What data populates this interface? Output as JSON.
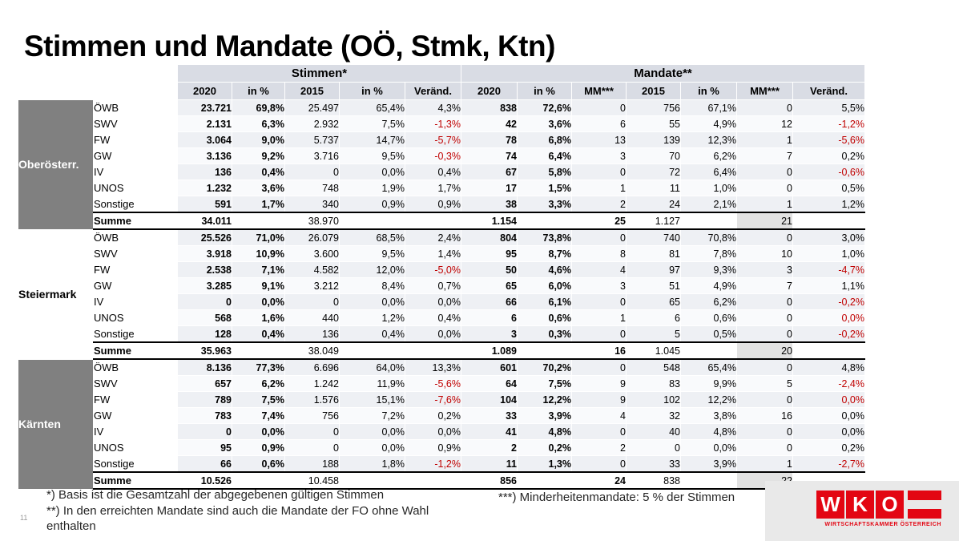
{
  "title": "Stimmen und Mandate (OÖ, Stmk, Ktn)",
  "page_number": "11",
  "table": {
    "group_headers": {
      "stimmen": "Stimmen*",
      "mandate": "Mandate**"
    },
    "columns": [
      "2020",
      "in %",
      "2015",
      "in %",
      "Veränd.",
      "2020",
      "in %",
      "MM***",
      "2015",
      "in %",
      "MM***",
      "Veränd."
    ],
    "regions": [
      {
        "name": "Oberösterr.",
        "shaded": true,
        "rows": [
          {
            "party": "ÖWB",
            "cells": [
              "23.721",
              "69,8%",
              "25.497",
              "65,4%",
              "4,3%",
              "838",
              "72,6%",
              "0",
              "756",
              "67,1%",
              "0",
              "5,5%"
            ],
            "red": []
          },
          {
            "party": "SWV",
            "cells": [
              "2.131",
              "6,3%",
              "2.932",
              "7,5%",
              "-1,3%",
              "42",
              "3,6%",
              "6",
              "55",
              "4,9%",
              "12",
              "-1,2%"
            ],
            "red": [
              4,
              11
            ]
          },
          {
            "party": "FW",
            "cells": [
              "3.064",
              "9,0%",
              "5.737",
              "14,7%",
              "-5,7%",
              "78",
              "6,8%",
              "13",
              "139",
              "12,3%",
              "1",
              "-5,6%"
            ],
            "red": [
              4,
              11
            ]
          },
          {
            "party": "GW",
            "cells": [
              "3.136",
              "9,2%",
              "3.716",
              "9,5%",
              "-0,3%",
              "74",
              "6,4%",
              "3",
              "70",
              "6,2%",
              "7",
              "0,2%"
            ],
            "red": [
              4
            ]
          },
          {
            "party": "IV",
            "cells": [
              "136",
              "0,4%",
              "0",
              "0,0%",
              "0,4%",
              "67",
              "5,8%",
              "0",
              "72",
              "6,4%",
              "0",
              "-0,6%"
            ],
            "red": [
              11
            ]
          },
          {
            "party": "UNOS",
            "cells": [
              "1.232",
              "3,6%",
              "748",
              "1,9%",
              "1,7%",
              "17",
              "1,5%",
              "1",
              "11",
              "1,0%",
              "0",
              "0,5%"
            ],
            "red": []
          },
          {
            "party": "Sonstige",
            "cells": [
              "591",
              "1,7%",
              "340",
              "0,9%",
              "0,9%",
              "38",
              "3,3%",
              "2",
              "24",
              "2,1%",
              "1",
              "1,2%"
            ],
            "red": []
          }
        ],
        "summe": {
          "label": "Summe",
          "cells": [
            "34.011",
            "",
            "38.970",
            "",
            "",
            "1.154",
            "",
            "25",
            "1.127",
            "",
            "21",
            ""
          ]
        }
      },
      {
        "name": "Steiermark",
        "shaded": false,
        "rows": [
          {
            "party": "ÖWB",
            "cells": [
              "25.526",
              "71,0%",
              "26.079",
              "68,5%",
              "2,4%",
              "804",
              "73,8%",
              "0",
              "740",
              "70,8%",
              "0",
              "3,0%"
            ],
            "red": []
          },
          {
            "party": "SWV",
            "cells": [
              "3.918",
              "10,9%",
              "3.600",
              "9,5%",
              "1,4%",
              "95",
              "8,7%",
              "8",
              "81",
              "7,8%",
              "10",
              "1,0%"
            ],
            "red": []
          },
          {
            "party": "FW",
            "cells": [
              "2.538",
              "7,1%",
              "4.582",
              "12,0%",
              "-5,0%",
              "50",
              "4,6%",
              "4",
              "97",
              "9,3%",
              "3",
              "-4,7%"
            ],
            "red": [
              4,
              11
            ]
          },
          {
            "party": "GW",
            "cells": [
              "3.285",
              "9,1%",
              "3.212",
              "8,4%",
              "0,7%",
              "65",
              "6,0%",
              "3",
              "51",
              "4,9%",
              "7",
              "1,1%"
            ],
            "red": []
          },
          {
            "party": "IV",
            "cells": [
              "0",
              "0,0%",
              "0",
              "0,0%",
              "0,0%",
              "66",
              "6,1%",
              "0",
              "65",
              "6,2%",
              "0",
              "-0,2%"
            ],
            "red": [
              11
            ]
          },
          {
            "party": "UNOS",
            "cells": [
              "568",
              "1,6%",
              "440",
              "1,2%",
              "0,4%",
              "6",
              "0,6%",
              "1",
              "6",
              "0,6%",
              "0",
              "0,0%"
            ],
            "red": [
              11
            ]
          },
          {
            "party": "Sonstige",
            "cells": [
              "128",
              "0,4%",
              "136",
              "0,4%",
              "0,0%",
              "3",
              "0,3%",
              "0",
              "5",
              "0,5%",
              "0",
              "-0,2%"
            ],
            "red": [
              11
            ]
          }
        ],
        "summe": {
          "label": "Summe",
          "cells": [
            "35.963",
            "",
            "38.049",
            "",
            "",
            "1.089",
            "",
            "16",
            "1.045",
            "",
            "20",
            ""
          ]
        }
      },
      {
        "name": "Kärnten",
        "shaded": true,
        "rows": [
          {
            "party": "ÖWB",
            "cells": [
              "8.136",
              "77,3%",
              "6.696",
              "64,0%",
              "13,3%",
              "601",
              "70,2%",
              "0",
              "548",
              "65,4%",
              "0",
              "4,8%"
            ],
            "red": []
          },
          {
            "party": "SWV",
            "cells": [
              "657",
              "6,2%",
              "1.242",
              "11,9%",
              "-5,6%",
              "64",
              "7,5%",
              "9",
              "83",
              "9,9%",
              "5",
              "-2,4%"
            ],
            "red": [
              4,
              11
            ]
          },
          {
            "party": "FW",
            "cells": [
              "789",
              "7,5%",
              "1.576",
              "15,1%",
              "-7,6%",
              "104",
              "12,2%",
              "9",
              "102",
              "12,2%",
              "0",
              "0,0%"
            ],
            "red": [
              4,
              11
            ]
          },
          {
            "party": "GW",
            "cells": [
              "783",
              "7,4%",
              "756",
              "7,2%",
              "0,2%",
              "33",
              "3,9%",
              "4",
              "32",
              "3,8%",
              "16",
              "0,0%"
            ],
            "red": []
          },
          {
            "party": "IV",
            "cells": [
              "0",
              "0,0%",
              "0",
              "0,0%",
              "0,0%",
              "41",
              "4,8%",
              "0",
              "40",
              "4,8%",
              "0",
              "0,0%"
            ],
            "red": []
          },
          {
            "party": "UNOS",
            "cells": [
              "95",
              "0,9%",
              "0",
              "0,0%",
              "0,9%",
              "2",
              "0,2%",
              "2",
              "0",
              "0,0%",
              "0",
              "0,2%"
            ],
            "red": []
          },
          {
            "party": "Sonstige",
            "cells": [
              "66",
              "0,6%",
              "188",
              "1,8%",
              "-1,2%",
              "11",
              "1,3%",
              "0",
              "33",
              "3,9%",
              "1",
              "-2,7%"
            ],
            "red": [
              4,
              11
            ]
          }
        ],
        "summe": {
          "label": "Summe",
          "cells": [
            "10.526",
            "",
            "10.458",
            "",
            "",
            "856",
            "",
            "24",
            "838",
            "",
            "22",
            ""
          ]
        }
      }
    ]
  },
  "footnotes": {
    "note1": "*) Basis ist die Gesamtzahl der abgegebenen gültigen Stimmen",
    "note2": "**) In den erreichten Mandate sind auch die Mandate der FO ohne Wahl enthalten",
    "note3": "***) Minderheitenmandate: 5 % der Stimmen"
  },
  "logo": {
    "letters": [
      "W",
      "K",
      "O"
    ],
    "caption": "WIRTSCHAFTSKAMMER ÖSTERREICH"
  },
  "colors": {
    "negative_value": "#C00000",
    "header_bg": "#D9DCE4",
    "region_block": "#808080",
    "mm_column_bg": "#E2E2E2",
    "wko_red": "#E30613",
    "logo_panel_bg": "#E9E9E9"
  }
}
